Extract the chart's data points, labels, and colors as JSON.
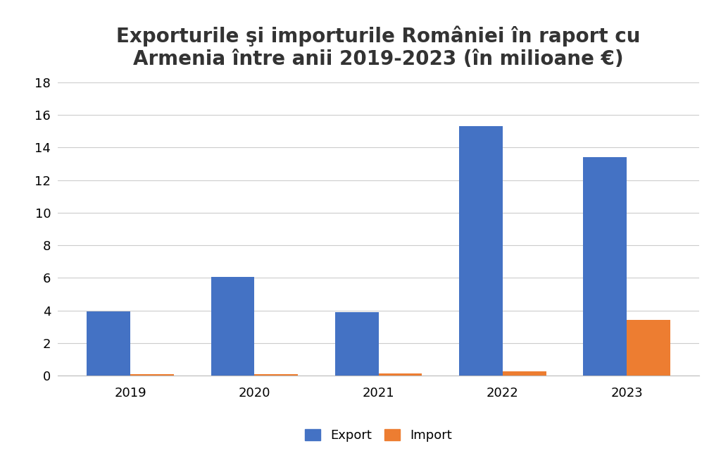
{
  "title": "Exporturile şi importurile României în raport cu\nArmenia între anii 2019-2023 (în milioane €)",
  "years": [
    "2019",
    "2020",
    "2021",
    "2022",
    "2023"
  ],
  "export_values": [
    3.95,
    6.05,
    3.9,
    15.3,
    13.4
  ],
  "import_values": [
    0.1,
    0.09,
    0.15,
    0.25,
    3.4
  ],
  "export_color": "#4472C4",
  "import_color": "#ED7D31",
  "ylim": [
    0,
    18
  ],
  "yticks": [
    0,
    2,
    4,
    6,
    8,
    10,
    12,
    14,
    16,
    18
  ],
  "legend_export": "Export",
  "legend_import": "Import",
  "bar_width": 0.35,
  "background_color": "#FFFFFF",
  "grid_color": "#CCCCCC",
  "title_fontsize": 20,
  "tick_fontsize": 13,
  "legend_fontsize": 13
}
